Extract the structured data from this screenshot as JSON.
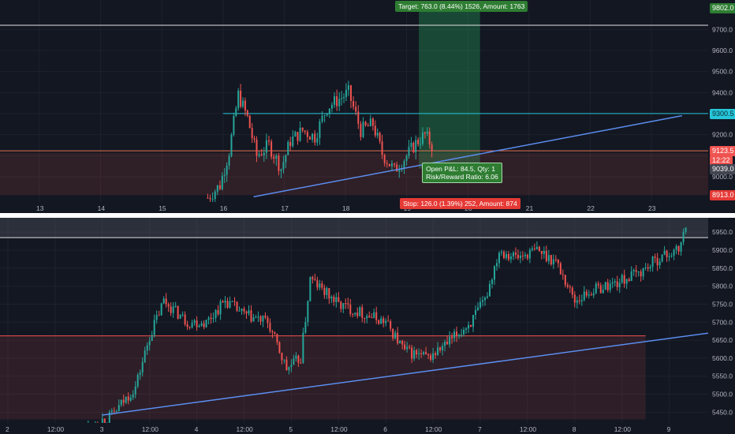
{
  "chart_data": [
    {
      "type": "candlestick",
      "pane": "top",
      "x_tick_labels": [
        "13",
        "14",
        "15",
        "16",
        "17",
        "18",
        "19",
        "20",
        "21",
        "22",
        "23"
      ],
      "y_tick_labels": [
        "9700.0",
        "9600.0",
        "9500.0",
        "9400.0",
        "9300.0",
        "9200.0",
        "9100.0",
        "9000.0"
      ],
      "ylim": [
        8880,
        9840
      ],
      "price_tags": [
        {
          "label": "9802.0",
          "value": 9802.0,
          "bg": "#2e7d32",
          "fg": "#ffffff"
        },
        {
          "label": "9300.5",
          "value": 9300.5,
          "bg": "#26c6da",
          "fg": "#0d2a30"
        },
        {
          "label": "9123.5",
          "value": 9123.5,
          "bg": "#ef5350",
          "fg": "#ffffff"
        },
        {
          "label": "12:22",
          "value": 9080,
          "bg": "#ef5350",
          "fg": "#ffffff"
        },
        {
          "label": "9039.0",
          "value": 9039.0,
          "bg": "#434651",
          "fg": "#ffffff"
        },
        {
          "label": "8913.0",
          "value": 8913.0,
          "bg": "#e53935",
          "fg": "#ffffff"
        }
      ],
      "position_tool": {
        "entry": 9039.0,
        "target": 9802.0,
        "stop": 8913.0,
        "target_label": "Target: 763.0 (8.44%) 1526, Amount: 1763",
        "stop_label": "Stop: 126.0 (1.39%) 252, Amount: 874",
        "pnl_label_line1": "Open P&L: 84.5, Qty: 1",
        "pnl_label_line2": "Risk/Reward Ratio: 6.06"
      },
      "horizontal_lines": [
        {
          "value": 9300.5,
          "color": "#26c6da"
        },
        {
          "value": 9123.5,
          "color": "#ef7350"
        },
        {
          "value": 9720,
          "color": "#e0e0e0"
        }
      ],
      "trendline": {
        "from": {
          "day": 16.5,
          "price": 8905
        },
        "to": {
          "day": 23.5,
          "price": 9290
        },
        "color": "#5b8def"
      },
      "candles_close_path": [
        {
          "day": 15.75,
          "price": 8900
        },
        {
          "day": 15.95,
          "price": 8960
        },
        {
          "day": 16.1,
          "price": 9120
        },
        {
          "day": 16.25,
          "price": 9390
        },
        {
          "day": 16.4,
          "price": 9280
        },
        {
          "day": 16.55,
          "price": 9100
        },
        {
          "day": 16.75,
          "price": 9150
        },
        {
          "day": 16.95,
          "price": 9040
        },
        {
          "day": 17.1,
          "price": 9170
        },
        {
          "day": 17.3,
          "price": 9220
        },
        {
          "day": 17.5,
          "price": 9190
        },
        {
          "day": 17.7,
          "price": 9330
        },
        {
          "day": 17.9,
          "price": 9370
        },
        {
          "day": 18.05,
          "price": 9400
        },
        {
          "day": 18.25,
          "price": 9220
        },
        {
          "day": 18.45,
          "price": 9250
        },
        {
          "day": 18.6,
          "price": 9110
        },
        {
          "day": 18.8,
          "price": 9030
        },
        {
          "day": 19.0,
          "price": 9100
        },
        {
          "day": 19.15,
          "price": 9160
        },
        {
          "day": 19.3,
          "price": 9200
        },
        {
          "day": 19.45,
          "price": 9130
        }
      ]
    },
    {
      "type": "candlestick",
      "pane": "bottom",
      "x_tick_labels": [
        "2",
        "12:00",
        "3",
        "12:00",
        "4",
        "12:00",
        "5",
        "12:00",
        "6",
        "12:00",
        "7",
        "12:00",
        "8",
        "12:00",
        "9"
      ],
      "y_tick_labels": [
        "5950.0",
        "5900.0",
        "5850.0",
        "5800.0",
        "5750.0",
        "5700.0",
        "5650.0",
        "5600.0",
        "5550.0",
        "5500.0",
        "5450.0"
      ],
      "ylim": [
        5420,
        5990
      ],
      "horizontal_lines": [
        {
          "value": 5935,
          "color": "#e0e0e0"
        },
        {
          "value": 5662,
          "color": "#ef5350"
        }
      ],
      "trendline": {
        "from": {
          "t": 3.0,
          "price": 5442
        },
        "to": {
          "t": 9.65,
          "price": 5678
        },
        "color": "#5b8def"
      },
      "candles_close_path": [
        {
          "t": 2.85,
          "price": 5410
        },
        {
          "t": 3.1,
          "price": 5440
        },
        {
          "t": 3.35,
          "price": 5520
        },
        {
          "t": 3.5,
          "price": 5660
        },
        {
          "t": 3.65,
          "price": 5760
        },
        {
          "t": 3.9,
          "price": 5700
        },
        {
          "t": 4.1,
          "price": 5700
        },
        {
          "t": 4.3,
          "price": 5760
        },
        {
          "t": 4.5,
          "price": 5720
        },
        {
          "t": 4.75,
          "price": 5700
        },
        {
          "t": 4.95,
          "price": 5570
        },
        {
          "t": 5.1,
          "price": 5600
        },
        {
          "t": 5.2,
          "price": 5820
        },
        {
          "t": 5.5,
          "price": 5750
        },
        {
          "t": 5.8,
          "price": 5720
        },
        {
          "t": 6.0,
          "price": 5700
        },
        {
          "t": 6.2,
          "price": 5620
        },
        {
          "t": 6.45,
          "price": 5600
        },
        {
          "t": 6.65,
          "price": 5640
        },
        {
          "t": 6.9,
          "price": 5700
        },
        {
          "t": 7.05,
          "price": 5760
        },
        {
          "t": 7.2,
          "price": 5900
        },
        {
          "t": 7.4,
          "price": 5880
        },
        {
          "t": 7.6,
          "price": 5900
        },
        {
          "t": 7.8,
          "price": 5870
        },
        {
          "t": 8.0,
          "price": 5760
        },
        {
          "t": 8.2,
          "price": 5790
        },
        {
          "t": 8.45,
          "price": 5810
        },
        {
          "t": 8.7,
          "price": 5840
        },
        {
          "t": 8.9,
          "price": 5880
        },
        {
          "t": 9.1,
          "price": 5900
        },
        {
          "t": 9.2,
          "price": 5985
        }
      ]
    }
  ]
}
